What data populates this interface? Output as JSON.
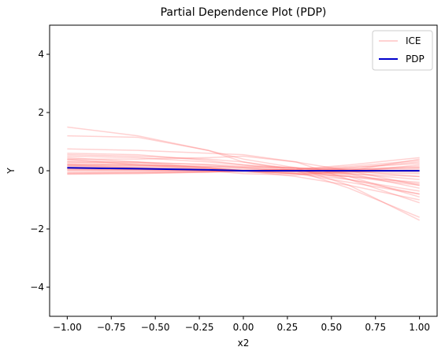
{
  "chart_data": {
    "type": "line",
    "title": "Partial Dependence Plot (PDP)",
    "xlabel": "x2",
    "ylabel": "Y",
    "xlim": [
      -1.1,
      1.1
    ],
    "ylim": [
      -5,
      5
    ],
    "x_ticks": [
      -1.0,
      -0.75,
      -0.5,
      -0.25,
      0.0,
      0.25,
      0.5,
      0.75,
      1.0
    ],
    "x_tick_labels": [
      "−1.00",
      "−0.75",
      "−0.50",
      "−0.25",
      "0.00",
      "0.25",
      "0.50",
      "0.75",
      "1.00"
    ],
    "y_ticks": [
      -4,
      -2,
      0,
      2,
      4
    ],
    "y_tick_labels": [
      "−4",
      "−2",
      "0",
      "2",
      "4"
    ],
    "grid": false,
    "legend": {
      "placement": "top-right",
      "entries": [
        "ICE",
        "PDP"
      ]
    },
    "colors": {
      "ice": "#ff6b6b",
      "pdp": "#0000cc"
    },
    "x": [
      -1.0,
      -0.6,
      -0.2,
      0.0,
      0.3,
      0.6,
      1.0
    ],
    "ice_series": [
      [
        1.5,
        1.2,
        0.7,
        0.4,
        0.1,
        -0.5,
        -1.7
      ],
      [
        1.2,
        1.15,
        0.7,
        0.3,
        0.0,
        -0.6,
        -1.6
      ],
      [
        0.75,
        0.7,
        0.6,
        0.55,
        0.3,
        -0.3,
        -1.1
      ],
      [
        0.6,
        0.55,
        0.35,
        0.2,
        0.0,
        -0.2,
        -0.9
      ],
      [
        0.5,
        0.45,
        0.3,
        0.2,
        0.1,
        -0.1,
        -0.6
      ],
      [
        0.45,
        0.3,
        0.1,
        0.0,
        -0.1,
        -0.4,
        -0.8
      ],
      [
        0.4,
        0.4,
        0.45,
        0.5,
        0.3,
        0.0,
        -0.5
      ],
      [
        0.35,
        0.3,
        0.2,
        0.1,
        0.0,
        -0.1,
        -0.3
      ],
      [
        0.3,
        0.28,
        0.22,
        0.15,
        0.1,
        0.0,
        -0.2
      ],
      [
        0.25,
        0.2,
        0.1,
        0.0,
        -0.1,
        -0.2,
        -0.4
      ],
      [
        0.2,
        0.18,
        0.15,
        0.12,
        0.1,
        0.05,
        0.0
      ],
      [
        0.15,
        0.1,
        0.05,
        0.0,
        -0.05,
        -0.1,
        -0.2
      ],
      [
        0.1,
        0.08,
        0.05,
        0.02,
        0.0,
        -0.02,
        -0.05
      ],
      [
        0.05,
        0.04,
        0.02,
        0.0,
        -0.02,
        -0.05,
        -0.1
      ],
      [
        0.0,
        0.0,
        0.0,
        0.0,
        0.0,
        0.0,
        0.0
      ],
      [
        -0.05,
        -0.04,
        -0.02,
        0.0,
        0.05,
        0.2,
        0.45
      ],
      [
        -0.1,
        -0.08,
        -0.05,
        0.0,
        0.05,
        0.15,
        0.35
      ],
      [
        0.1,
        0.05,
        0.0,
        -0.05,
        -0.1,
        -0.05,
        0.2
      ],
      [
        0.2,
        0.1,
        0.0,
        -0.1,
        -0.15,
        0.0,
        0.4
      ],
      [
        0.12,
        0.1,
        0.05,
        0.0,
        0.05,
        0.1,
        0.25
      ],
      [
        0.3,
        0.25,
        0.1,
        0.0,
        -0.2,
        -0.5,
        -1.0
      ],
      [
        0.55,
        0.5,
        0.4,
        0.3,
        0.05,
        -0.3,
        -0.7
      ],
      [
        0.08,
        0.06,
        0.03,
        0.0,
        -0.05,
        -0.2,
        -0.5
      ],
      [
        -0.08,
        -0.06,
        -0.03,
        0.0,
        0.02,
        0.05,
        0.1
      ],
      [
        0.18,
        0.15,
        0.1,
        0.05,
        0.0,
        -0.05,
        0.05
      ],
      [
        0.02,
        0.02,
        0.01,
        0.0,
        0.0,
        0.02,
        0.1
      ],
      [
        0.4,
        0.2,
        0.05,
        0.0,
        -0.1,
        -0.3,
        -0.8
      ],
      [
        0.07,
        0.05,
        0.02,
        0.0,
        0.0,
        0.1,
        0.3
      ],
      [
        -0.12,
        -0.1,
        -0.05,
        0.0,
        0.0,
        0.05,
        0.15
      ],
      [
        0.22,
        0.2,
        0.15,
        0.1,
        0.0,
        -0.15,
        -0.45
      ]
    ],
    "pdp": [
      0.1,
      0.07,
      0.03,
      0.0,
      0.0,
      0.0,
      0.0
    ]
  }
}
